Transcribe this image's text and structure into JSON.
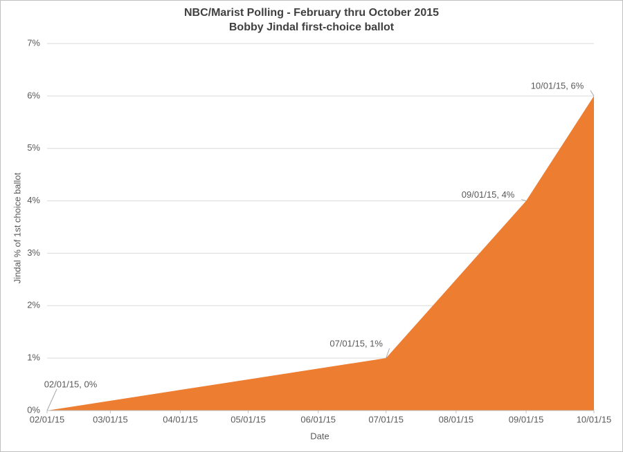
{
  "chart_data": {
    "type": "area",
    "title": "NBC/Marist Polling - February thru October 2015",
    "subtitle": "Bobby Jindal first-choice ballot",
    "x_label": "Date",
    "y_label": "Jindal % of 1st choice ballot",
    "x": [
      "02/01/15",
      "07/01/15",
      "09/01/15",
      "10/01/15"
    ],
    "values": [
      0,
      1,
      4,
      6
    ],
    "value_labels": [
      "02/01/15, 0%",
      "07/01/15, 1%",
      "09/01/15, 4%",
      "10/01/15, 6%"
    ],
    "color": "#ed7d31",
    "xlim": [
      "02/01/15",
      "10/01/15"
    ],
    "xticks": [
      "02/01/15",
      "03/01/15",
      "04/01/15",
      "05/01/15",
      "06/01/15",
      "07/01/15",
      "08/01/15",
      "09/01/15",
      "10/01/15"
    ],
    "ylim": [
      0,
      7
    ],
    "yticks": [
      {
        "value": 0,
        "label": "0%"
      },
      {
        "value": 1,
        "label": "1%"
      },
      {
        "value": 2,
        "label": "2%"
      },
      {
        "value": 3,
        "label": "3%"
      },
      {
        "value": 4,
        "label": "4%"
      },
      {
        "value": 5,
        "label": "5%"
      },
      {
        "value": 6,
        "label": "6%"
      },
      {
        "value": 7,
        "label": "7%"
      }
    ],
    "grid": true
  }
}
